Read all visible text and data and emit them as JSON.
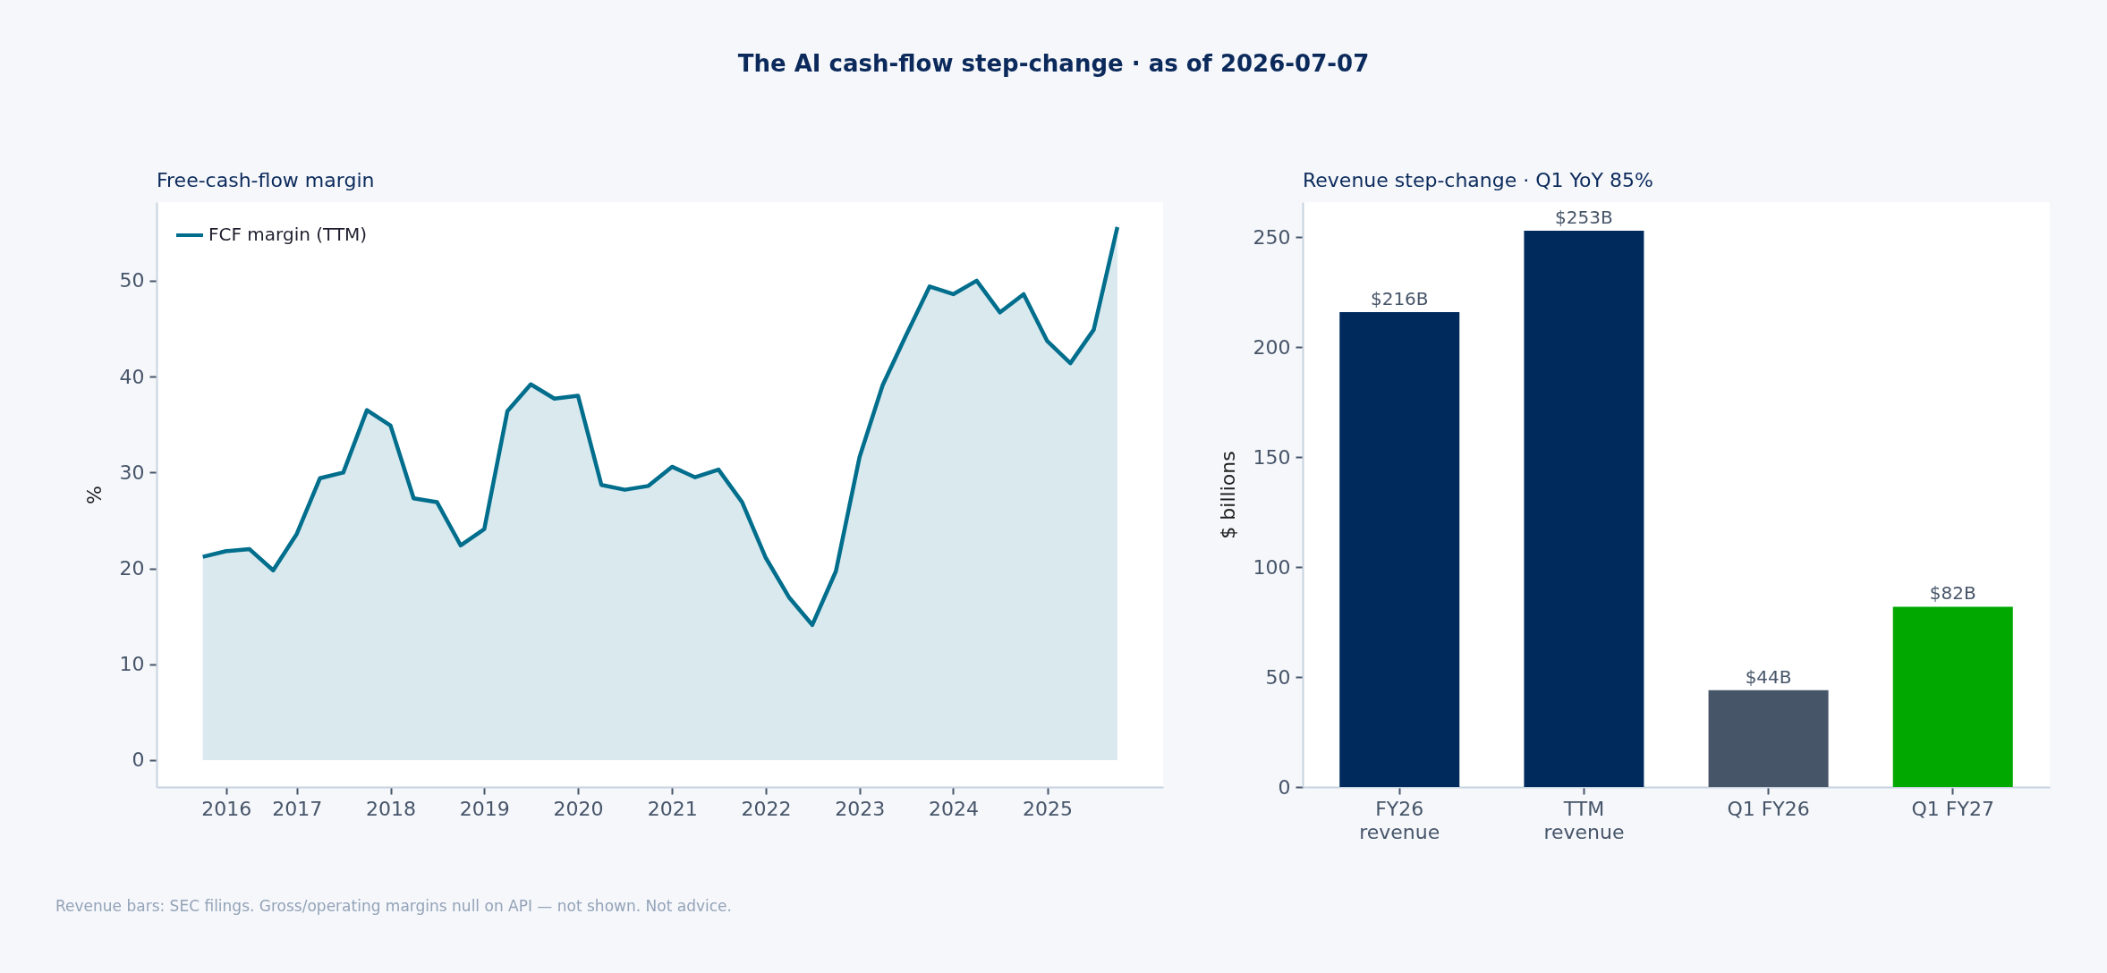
{
  "chart_data": [
    {
      "type": "area",
      "title": "The AI cash-flow step-change · as of 2026-07-07",
      "subtitle": "Free-cash-flow margin",
      "ylabel": "%",
      "legend": "top left",
      "x": [
        "2016-01",
        "2016-04",
        "2016-07",
        "2016-10",
        "2017-01",
        "2017-04",
        "2017-07",
        "2017-10",
        "2018-01",
        "2018-04",
        "2018-07",
        "2018-10",
        "2019-01",
        "2019-04",
        "2019-07",
        "2019-10",
        "2020-01",
        "2020-04",
        "2020-07",
        "2020-10",
        "2021-01",
        "2021-04",
        "2021-07",
        "2021-10",
        "2022-01",
        "2022-04",
        "2022-07",
        "2022-10",
        "2023-01",
        "2023-04",
        "2023-07",
        "2023-10",
        "2024-01",
        "2024-04",
        "2024-07",
        "2024-10",
        "2025-01",
        "2025-04",
        "2025-07",
        "2025-10"
      ],
      "series": [
        {
          "name": "FCF margin (TTM)",
          "color": "#006e8c",
          "type": "area",
          "values": [
            21.2,
            21.8,
            22.0,
            19.8,
            23.6,
            29.4,
            30.0,
            36.5,
            34.9,
            27.3,
            26.9,
            22.4,
            24.1,
            36.4,
            39.2,
            37.7,
            38.0,
            28.7,
            28.2,
            28.6,
            30.6,
            29.5,
            30.3,
            26.9,
            21.1,
            17.0,
            14.1,
            19.7,
            31.6,
            39.1,
            44.3,
            49.4,
            48.6,
            50.0,
            46.7,
            48.6,
            43.7,
            41.4,
            44.9,
            55.6
          ]
        }
      ],
      "xlim": [
        "2015-07-05",
        "2026-03-28"
      ],
      "xticks": [
        {
          "value": "2016-04",
          "label": "2016"
        },
        {
          "value": "2017-01",
          "label": "2017"
        },
        {
          "value": "2018-01",
          "label": "2018"
        },
        {
          "value": "2019-01",
          "label": "2019"
        },
        {
          "value": "2020-01",
          "label": "2020"
        },
        {
          "value": "2021-01",
          "label": "2021"
        },
        {
          "value": "2022-01",
          "label": "2022"
        },
        {
          "value": "2023-01",
          "label": "2023"
        },
        {
          "value": "2024-01",
          "label": "2024"
        },
        {
          "value": "2025-01",
          "label": "2025"
        }
      ],
      "ylim": [
        -2.8,
        58.2
      ],
      "yticks": [
        0,
        10,
        20,
        30,
        40,
        50
      ],
      "annotations": [
        "Revenue bars: SEC filings. Gross/operating margins null on API — not shown. Not advice."
      ]
    },
    {
      "type": "bar",
      "subtitle": "Revenue step-change · Q1 YoY 85%",
      "ylabel": "$ billions",
      "categories": [
        "FY26\nrevenue",
        "TTM\nrevenue",
        "Q1 FY26",
        "Q1 FY27"
      ],
      "values": [
        216,
        253,
        44,
        82
      ],
      "colors": [
        "#002a5c",
        "#002a5c",
        "#475569",
        "#00a800"
      ],
      "value_labels": [
        "$216B",
        "$253B",
        "$44B",
        "$82B"
      ],
      "ylim": [
        0,
        266
      ],
      "yticks": [
        0,
        50,
        100,
        150,
        200,
        250
      ]
    }
  ]
}
